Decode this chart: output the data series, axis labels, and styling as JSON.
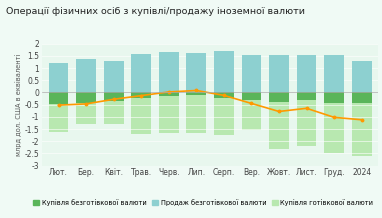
{
  "title": "Операції фізичних осіб з купівлі/продажу іноземної валюти",
  "ylabel": "млрд дол. США в еквіваленті",
  "categories": [
    "Лют.",
    "Бер.",
    "Квіт.",
    "Трав.",
    "Черв.",
    "Лип.",
    "Серп.",
    "Вер.",
    "Жовт.",
    "Лист.",
    "Груд.",
    "2024"
  ],
  "sell_cashless": [
    1.2,
    1.35,
    1.3,
    1.58,
    1.65,
    1.62,
    1.7,
    1.55,
    1.55,
    1.55,
    1.55,
    1.27
  ],
  "buy_cashless": [
    -0.48,
    -0.45,
    -0.35,
    -0.22,
    -0.15,
    -0.12,
    -0.22,
    -0.32,
    -0.38,
    -0.33,
    -0.45,
    -0.42
  ],
  "buy_cash_total": [
    -1.62,
    -1.28,
    -1.3,
    -1.7,
    -1.65,
    -1.65,
    -1.75,
    -1.55,
    -2.3,
    -2.2,
    -2.5,
    -2.6
  ],
  "net_line": [
    -0.52,
    -0.47,
    -0.28,
    -0.13,
    0.02,
    0.08,
    -0.12,
    -0.45,
    -0.78,
    -0.65,
    -1.02,
    -1.12
  ],
  "sell_cashless_color": "#8dd0d0",
  "buy_cashless_color": "#5ab55a",
  "buy_cash_color": "#b8e8b0",
  "line_color": "#ff9900",
  "background_color": "#f0faf5",
  "plot_bg_color": "#e8f7ee",
  "ylim": [
    -3.0,
    2.0
  ],
  "yticks": [
    -3.0,
    -2.5,
    -2.0,
    -1.5,
    -1.0,
    -0.5,
    0.0,
    0.5,
    1.0,
    1.5,
    2.0
  ],
  "legend_labels": [
    "Купівля безготівкової валюти",
    "Продаж безготівкової валюти",
    "Купівля готівкової валюти"
  ],
  "title_fontsize": 6.8,
  "axis_fontsize": 5.5,
  "legend_fontsize": 4.8
}
